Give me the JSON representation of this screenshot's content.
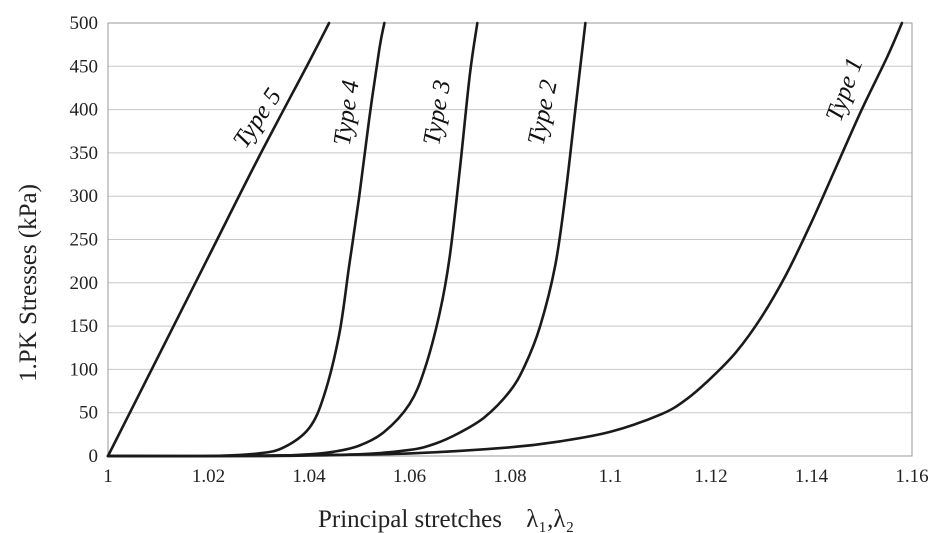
{
  "chart_data": {
    "type": "line",
    "xlabel": "Principal stretches",
    "xlabel_symbol": "λ₁,λ₂",
    "ylabel": "1.PK Stresses (kPa)",
    "xlim": [
      1,
      1.16
    ],
    "ylim": [
      0,
      500
    ],
    "x_ticks": [
      "1",
      "1.02",
      "1.04",
      "1.06",
      "1.08",
      "1.1",
      "1.12",
      "1.14",
      "1.16"
    ],
    "y_ticks": [
      "0",
      "50",
      "100",
      "150",
      "200",
      "250",
      "300",
      "350",
      "400",
      "450",
      "500"
    ],
    "grid": "horizontal",
    "series": [
      {
        "name": "Type 1",
        "x": [
          1.0,
          1.02,
          1.04,
          1.06,
          1.08,
          1.09,
          1.1,
          1.11,
          1.115,
          1.12,
          1.125,
          1.13,
          1.135,
          1.14,
          1.145,
          1.15,
          1.155,
          1.158
        ],
        "y": [
          0,
          0,
          1,
          3,
          10,
          17,
          28,
          48,
          65,
          90,
          120,
          160,
          210,
          270,
          335,
          400,
          460,
          500
        ]
      },
      {
        "name": "Type 2",
        "x": [
          1.0,
          1.03,
          1.05,
          1.06,
          1.065,
          1.07,
          1.075,
          1.08,
          1.083,
          1.086,
          1.089,
          1.091,
          1.093,
          1.095
        ],
        "y": [
          0,
          0,
          2,
          7,
          14,
          27,
          45,
          75,
          105,
          150,
          220,
          300,
          400,
          500
        ]
      },
      {
        "name": "Type 3",
        "x": [
          1.0,
          1.03,
          1.04,
          1.045,
          1.05,
          1.055,
          1.06,
          1.063,
          1.066,
          1.068,
          1.07,
          1.072,
          1.0735
        ],
        "y": [
          0,
          0,
          2,
          5,
          12,
          28,
          60,
          100,
          165,
          230,
          330,
          440,
          500
        ]
      },
      {
        "name": "Type 4",
        "x": [
          1.0,
          1.02,
          1.03,
          1.035,
          1.04,
          1.043,
          1.046,
          1.048,
          1.05,
          1.052,
          1.054,
          1.055
        ],
        "y": [
          0,
          0,
          3,
          10,
          32,
          70,
          140,
          220,
          300,
          390,
          470,
          500
        ]
      },
      {
        "name": "Type 5",
        "x": [
          1.0,
          1.01,
          1.02,
          1.03,
          1.04,
          1.044
        ],
        "y": [
          0,
          115,
          230,
          345,
          455,
          500
        ]
      }
    ]
  }
}
